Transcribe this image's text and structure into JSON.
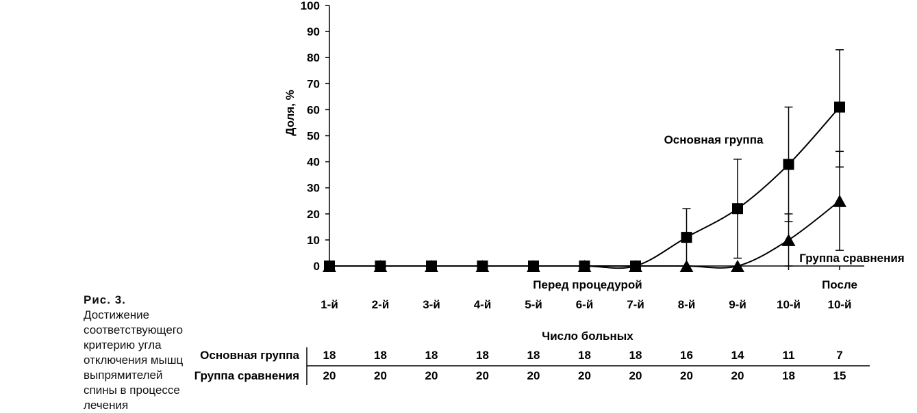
{
  "caption": {
    "label": "Рис. 3.",
    "text": "Достижение соответствующего критерию угла отключения мышц выпрямителей спины в процессе лечения"
  },
  "chart_data": {
    "type": "line",
    "ylabel": "Доля, %",
    "ylim": [
      0,
      100
    ],
    "yticks": [
      0,
      10,
      20,
      30,
      40,
      50,
      60,
      70,
      80,
      90,
      100
    ],
    "categories": [
      "1-й",
      "2-й",
      "3-й",
      "4-й",
      "5-й",
      "6-й",
      "7-й",
      "8-й",
      "9-й",
      "10-й",
      "10-й"
    ],
    "category_annotations": {
      "before_procedure": "Перед процедурой",
      "after": "После"
    },
    "series": [
      {
        "name": "Основная группа",
        "marker": "square",
        "values": [
          0,
          0,
          0,
          0,
          0,
          0,
          0,
          11,
          22,
          39,
          61
        ],
        "error_upper": [
          0,
          0,
          0,
          0,
          0,
          0,
          0,
          22,
          41,
          61,
          83
        ],
        "error_lower": [
          0,
          0,
          0,
          0,
          0,
          0,
          0,
          0,
          3,
          17,
          38
        ]
      },
      {
        "name": "Группа сравнения",
        "marker": "triangle",
        "values": [
          0,
          0,
          0,
          0,
          0,
          0,
          0,
          0,
          0,
          10,
          25
        ],
        "error_upper": [
          0,
          0,
          0,
          0,
          0,
          0,
          0,
          0,
          0,
          20,
          44
        ],
        "error_lower": [
          0,
          0,
          0,
          0,
          0,
          0,
          0,
          0,
          0,
          0,
          6
        ]
      }
    ],
    "table": {
      "title": "Число больных",
      "rows": [
        {
          "label": "Основная группа",
          "values": [
            "18",
            "18",
            "18",
            "18",
            "18",
            "18",
            "18",
            "16",
            "14",
            "11",
            "7"
          ]
        },
        {
          "label": "Группа сравнения",
          "values": [
            "20",
            "20",
            "20",
            "20",
            "20",
            "20",
            "20",
            "20",
            "20",
            "18",
            "15"
          ]
        }
      ]
    },
    "grid": false,
    "legend": "inline labels"
  }
}
